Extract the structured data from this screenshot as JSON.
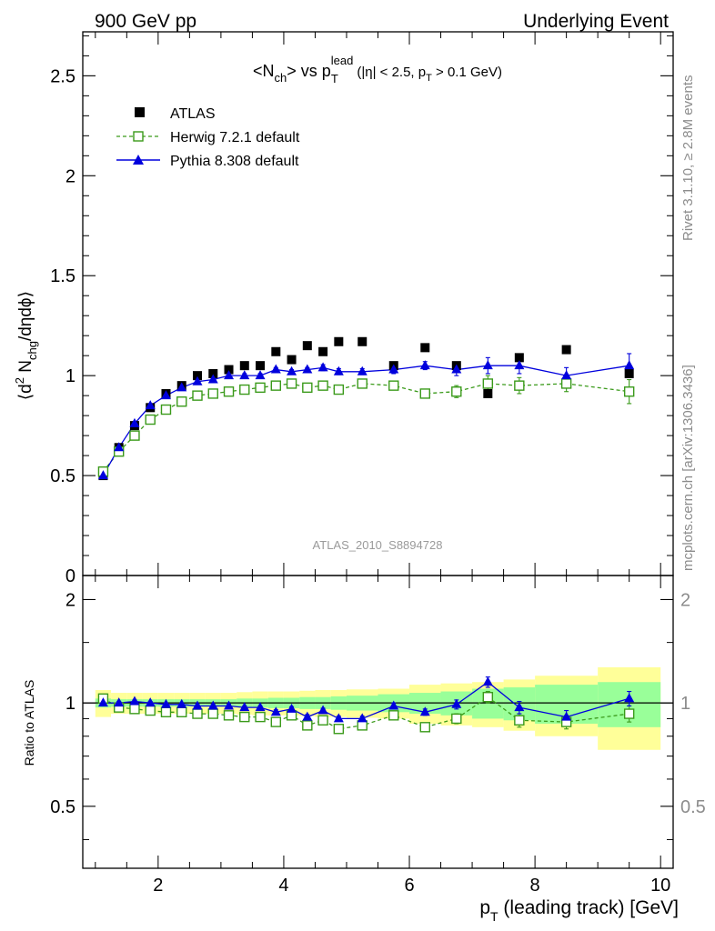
{
  "header": {
    "left": "900 GeV pp",
    "right": "Underlying Event"
  },
  "title": {
    "base": "<N",
    "base_sub": "ch",
    "mid": "> vs p",
    "sup": "lead",
    "sub": "T",
    "tail_a": "(|η| < 2.5, p",
    "tail_sub": "T",
    "tail_b": " > 0.1 GeV)"
  },
  "side_text": {
    "rivet": "Rivet 3.1.10, ≥ 2.8M events",
    "mcplots": "mcplots.cern.ch [arXiv:1306.3436]"
  },
  "analysis_tag": "ATLAS_2010_S8894728",
  "colors": {
    "atlas": "#000000",
    "herwig": "#3a9a1a",
    "pythia": "#0000dd",
    "band_yellow": "#ffff99",
    "band_green": "#99ff99"
  },
  "chart_data": [
    {
      "type": "scatter",
      "panel": "main",
      "ylabel_parts": {
        "a": "⟨d",
        "a_sup": "2",
        "b": " N",
        "b_sub": "chg",
        "c": "/dηdϕ⟩"
      },
      "xlim": [
        0.8,
        10.2
      ],
      "ylim": [
        0,
        2.72
      ],
      "yticks": [
        0,
        0.5,
        1,
        1.5,
        2,
        2.5
      ],
      "ytick_labels": [
        "0",
        "0.5",
        "1",
        "1.5",
        "2",
        "2.5"
      ],
      "legend_position": "top-left",
      "series": [
        {
          "name": "ATLAS",
          "marker": "square-filled",
          "x": [
            1.125,
            1.375,
            1.625,
            1.875,
            2.125,
            2.375,
            2.625,
            2.875,
            3.125,
            3.375,
            3.625,
            3.875,
            4.125,
            4.375,
            4.625,
            4.875,
            5.25,
            5.75,
            6.25,
            6.75,
            7.25,
            7.75,
            8.5,
            9.5
          ],
          "y": [
            0.5,
            0.64,
            0.75,
            0.84,
            0.91,
            0.95,
            1.0,
            1.01,
            1.03,
            1.05,
            1.05,
            1.12,
            1.08,
            1.15,
            1.12,
            1.17,
            1.17,
            1.05,
            1.14,
            1.05,
            0.91,
            1.09,
            1.13,
            1.01
          ]
        },
        {
          "name": "Herwig 7.2.1 default",
          "marker": "square-open",
          "x": [
            1.125,
            1.375,
            1.625,
            1.875,
            2.125,
            2.375,
            2.625,
            2.875,
            3.125,
            3.375,
            3.625,
            3.875,
            4.125,
            4.375,
            4.625,
            4.875,
            5.25,
            5.75,
            6.25,
            6.75,
            7.25,
            7.75,
            8.5,
            9.5
          ],
          "y": [
            0.52,
            0.62,
            0.7,
            0.78,
            0.83,
            0.87,
            0.9,
            0.91,
            0.92,
            0.93,
            0.94,
            0.95,
            0.96,
            0.94,
            0.95,
            0.93,
            0.96,
            0.95,
            0.91,
            0.92,
            0.96,
            0.95,
            0.96,
            0.92
          ],
          "yerr": [
            0.005,
            0.005,
            0.005,
            0.005,
            0.005,
            0.005,
            0.005,
            0.01,
            0.01,
            0.01,
            0.01,
            0.01,
            0.01,
            0.01,
            0.015,
            0.015,
            0.015,
            0.02,
            0.02,
            0.03,
            0.04,
            0.04,
            0.04,
            0.06
          ]
        },
        {
          "name": "Pythia 8.308 default",
          "marker": "triangle-filled",
          "x": [
            1.125,
            1.375,
            1.625,
            1.875,
            2.125,
            2.375,
            2.625,
            2.875,
            3.125,
            3.375,
            3.625,
            3.875,
            4.125,
            4.375,
            4.625,
            4.875,
            5.25,
            5.75,
            6.25,
            6.75,
            7.25,
            7.75,
            8.5,
            9.5
          ],
          "y": [
            0.5,
            0.64,
            0.76,
            0.85,
            0.9,
            0.94,
            0.97,
            0.98,
            1.0,
            1.0,
            1.0,
            1.03,
            1.02,
            1.03,
            1.04,
            1.02,
            1.02,
            1.03,
            1.05,
            1.03,
            1.05,
            1.05,
            1.0,
            1.05
          ],
          "yerr": [
            0.005,
            0.005,
            0.005,
            0.005,
            0.005,
            0.005,
            0.005,
            0.01,
            0.01,
            0.01,
            0.01,
            0.01,
            0.01,
            0.01,
            0.015,
            0.015,
            0.015,
            0.02,
            0.02,
            0.03,
            0.04,
            0.04,
            0.04,
            0.06
          ]
        }
      ]
    },
    {
      "type": "line",
      "panel": "ratio",
      "ylabel": "Ratio to ATLAS",
      "xlabel_parts": {
        "a": "p",
        "a_sub": "T",
        "b": " (leading track) [GeV]"
      },
      "xlim": [
        0.8,
        10.2
      ],
      "xticks": [
        2,
        4,
        6,
        8,
        10
      ],
      "xtick_labels": [
        "2",
        "4",
        "6",
        "8",
        "10"
      ],
      "ylim": [
        0.33,
        2.35
      ],
      "yticks": [
        0.5,
        1,
        2
      ],
      "ytick_labels": [
        "0.5",
        "1",
        "2"
      ],
      "reference_line": 1,
      "bands": {
        "edges": [
          1.0,
          1.25,
          1.5,
          1.75,
          2.0,
          2.25,
          2.5,
          2.75,
          3.0,
          3.25,
          3.5,
          3.75,
          4.0,
          4.25,
          4.5,
          4.75,
          5.0,
          5.5,
          6.0,
          6.5,
          7.0,
          7.5,
          8.0,
          9.0,
          10.0
        ],
        "yellow_halfwidth": [
          0.09,
          0.07,
          0.07,
          0.07,
          0.07,
          0.07,
          0.07,
          0.07,
          0.07,
          0.075,
          0.08,
          0.08,
          0.08,
          0.085,
          0.09,
          0.09,
          0.095,
          0.1,
          0.13,
          0.14,
          0.15,
          0.17,
          0.2,
          0.27
        ],
        "green_halfwidth": [
          0.03,
          0.025,
          0.025,
          0.025,
          0.025,
          0.025,
          0.025,
          0.025,
          0.025,
          0.03,
          0.03,
          0.035,
          0.035,
          0.04,
          0.04,
          0.045,
          0.05,
          0.06,
          0.07,
          0.08,
          0.1,
          0.11,
          0.13,
          0.15
        ]
      },
      "series": [
        {
          "name": "Herwig 7.2.1 default",
          "x": [
            1.125,
            1.375,
            1.625,
            1.875,
            2.125,
            2.375,
            2.625,
            2.875,
            3.125,
            3.375,
            3.625,
            3.875,
            4.125,
            4.375,
            4.625,
            4.875,
            5.25,
            5.75,
            6.25,
            6.75,
            7.25,
            7.75,
            8.5,
            9.5
          ],
          "y": [
            1.03,
            0.97,
            0.96,
            0.95,
            0.94,
            0.94,
            0.93,
            0.93,
            0.92,
            0.91,
            0.91,
            0.88,
            0.92,
            0.86,
            0.89,
            0.84,
            0.86,
            0.92,
            0.85,
            0.9,
            1.04,
            0.89,
            0.88,
            0.93
          ],
          "yerr": [
            0.01,
            0.01,
            0.01,
            0.01,
            0.01,
            0.01,
            0.01,
            0.01,
            0.01,
            0.01,
            0.01,
            0.015,
            0.015,
            0.015,
            0.015,
            0.015,
            0.015,
            0.02,
            0.02,
            0.03,
            0.04,
            0.04,
            0.04,
            0.05
          ]
        },
        {
          "name": "Pythia 8.308 default",
          "x": [
            1.125,
            1.375,
            1.625,
            1.875,
            2.125,
            2.375,
            2.625,
            2.875,
            3.125,
            3.375,
            3.625,
            3.875,
            4.125,
            4.375,
            4.625,
            4.875,
            5.25,
            5.75,
            6.25,
            6.75,
            7.25,
            7.75,
            8.5,
            9.5
          ],
          "y": [
            1.0,
            1.0,
            1.01,
            1.0,
            0.99,
            0.99,
            0.98,
            0.98,
            0.98,
            0.97,
            0.97,
            0.94,
            0.96,
            0.91,
            0.95,
            0.9,
            0.9,
            0.98,
            0.94,
            0.99,
            1.15,
            0.97,
            0.91,
            1.03
          ],
          "yerr": [
            0.01,
            0.01,
            0.01,
            0.01,
            0.01,
            0.01,
            0.01,
            0.01,
            0.01,
            0.01,
            0.01,
            0.015,
            0.015,
            0.015,
            0.015,
            0.015,
            0.015,
            0.02,
            0.02,
            0.03,
            0.04,
            0.04,
            0.04,
            0.05
          ]
        }
      ]
    }
  ]
}
